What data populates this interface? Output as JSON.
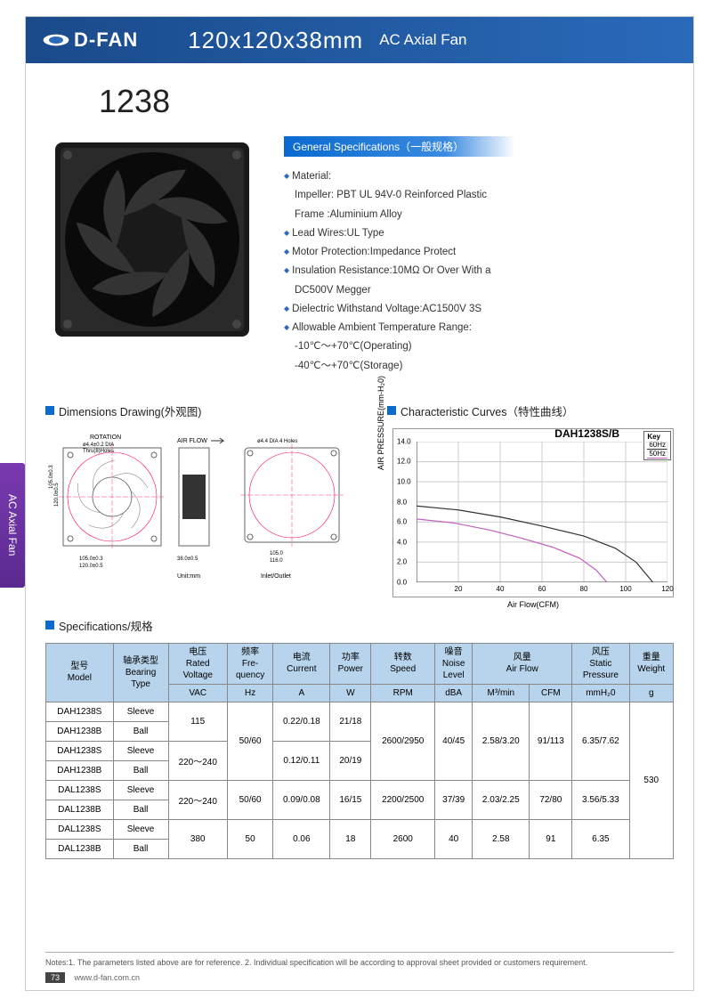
{
  "header": {
    "brand": "D-FAN",
    "size": "120x120x38mm",
    "category": "AC Axial Fan"
  },
  "model": "1238",
  "general": {
    "title": "General Specifications（一般规格）",
    "items": [
      {
        "t": "Material:",
        "sub": [
          "Impeller: PBT UL 94V-0 Reinforced Plastic",
          "Frame :Aluminium Alloy"
        ]
      },
      {
        "t": "Lead Wires:UL Type"
      },
      {
        "t": "Motor Protection:Impedance Protect"
      },
      {
        "t": "Insulation Resistance:10MΩ Or Over With a",
        "sub": [
          "DC500V Megger"
        ]
      },
      {
        "t": "Dielectric Withstand Voltage:AC1500V 3S"
      },
      {
        "t": "Allowable Ambient Temperature Range:",
        "sub": [
          "-10℃～+70℃(Operating)",
          "-40℃～+70℃(Storage)"
        ]
      }
    ]
  },
  "sections": {
    "dim": "Dimensions Drawing(外观图)",
    "curve": "Characteristic Curves（特性曲线）",
    "spec": "Specifications/规格"
  },
  "drawing": {
    "unit": "Unit:mm",
    "inlet": "Inlet/Outlet",
    "rotation": "ROTATION",
    "airflow": "AIR FLOW",
    "dia_label": "ø4.4±0.2 DIA",
    "thru": "Thru(8)Holes",
    "dia2": "ø4.4 DIA 4 Holes",
    "dims": {
      "w": "120.0±0.5",
      "h": "120.0±0.5",
      "hole": "105.0±0.3",
      "d": "38.0±0.5",
      "in_w": "116.0",
      "in_h": "105.0",
      "in_hole": "105.0"
    }
  },
  "chart": {
    "title": "DAH1238S/B",
    "key": "Key",
    "lines": [
      "60Hz",
      "50Hz"
    ],
    "ylabel": "AIR PRESSURE(mm-H₂0)",
    "xlabel": "Air Flow(CFM)",
    "ylim": [
      0,
      14
    ],
    "ytick_step": 2,
    "xlim": [
      0,
      120
    ],
    "xtick_step": 20,
    "colors": {
      "60Hz": "#333333",
      "50Hz": "#c060c0",
      "grid": "#cccccc",
      "bg": "#ffffff"
    },
    "series": {
      "60Hz": [
        [
          0,
          7.6
        ],
        [
          20,
          7.2
        ],
        [
          40,
          6.5
        ],
        [
          60,
          5.6
        ],
        [
          80,
          4.6
        ],
        [
          95,
          3.4
        ],
        [
          105,
          2.0
        ],
        [
          113,
          0
        ]
      ],
      "50Hz": [
        [
          0,
          6.3
        ],
        [
          18,
          5.9
        ],
        [
          35,
          5.2
        ],
        [
          50,
          4.4
        ],
        [
          65,
          3.5
        ],
        [
          78,
          2.4
        ],
        [
          86,
          1.2
        ],
        [
          91,
          0
        ]
      ]
    }
  },
  "table": {
    "headers": {
      "model": "型号\nModel",
      "bearing": "轴承类型\nBearing\nType",
      "voltage": "电压\nRated\nVoltage",
      "freq": "频率\nFre-\nquency",
      "current": "电流\nCurrent",
      "power": "功率\nPower",
      "speed": "转数\nSpeed",
      "noise": "噪音\nNoise\nLevel",
      "airflow": "风量\nAir Flow",
      "pressure": "风压\nStatic\nPressure",
      "weight": "重量\nWeight"
    },
    "units": {
      "voltage": "VAC",
      "freq": "Hz",
      "current": "A",
      "power": "W",
      "speed": "RPM",
      "noise": "dBA",
      "af1": "M³/min",
      "af2": "CFM",
      "pressure": "mmH₂0",
      "weight": "g"
    },
    "rows": [
      {
        "model": "DAH1238S",
        "bearing": "Sleeve"
      },
      {
        "model": "DAH1238B",
        "bearing": "Ball"
      },
      {
        "model": "DAH1238S",
        "bearing": "Sleeve"
      },
      {
        "model": "DAH1238B",
        "bearing": "Ball"
      },
      {
        "model": "DAL1238S",
        "bearing": "Sleeve"
      },
      {
        "model": "DAL1238B",
        "bearing": "Ball"
      },
      {
        "model": "DAL1238S",
        "bearing": "Sleeve"
      },
      {
        "model": "DAL1238B",
        "bearing": "Ball"
      }
    ],
    "merged": {
      "voltage": [
        "115",
        "220～240",
        "220～240",
        "380"
      ],
      "freq": [
        "50/60",
        "50/60",
        "50"
      ],
      "current": [
        "0.22/0.18",
        "0.12/0.11",
        "0.09/0.08",
        "0.06"
      ],
      "power": [
        "21/18",
        "20/19",
        "16/15",
        "18"
      ],
      "speed": [
        "2600/2950",
        "2200/2500",
        "2600"
      ],
      "noise": [
        "40/45",
        "37/39",
        "40"
      ],
      "af1": [
        "2.58/3.20",
        "2.03/2.25",
        "2.58"
      ],
      "af2": [
        "91/113",
        "72/80",
        "91"
      ],
      "pressure": [
        "6.35/7.62",
        "3.56/5.33",
        "6.35"
      ],
      "weight": "530"
    }
  },
  "sidetab": "AC Axial Fan",
  "footer": {
    "notes": "Notes:1. The parameters listed above are for reference.   2. Individual specification will be according to approval sheet provided or customers requirement.",
    "page": "73",
    "url": "www.d-fan.com.cn"
  }
}
